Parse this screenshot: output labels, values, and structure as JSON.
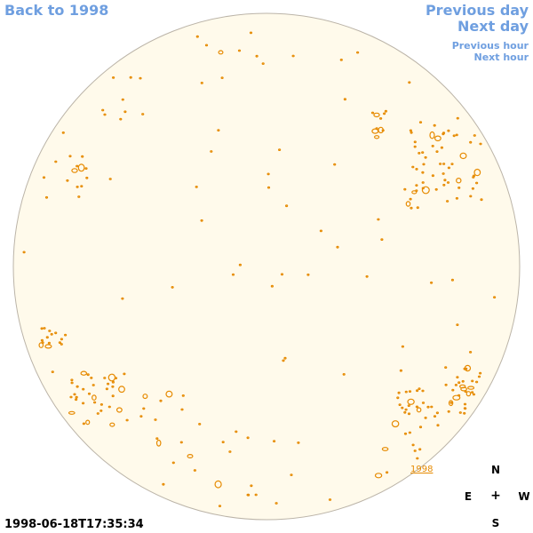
{
  "nav": {
    "back_label": "Back to 1998",
    "prev_day_label": "Previous day",
    "next_day_label": "Next day",
    "prev_hour_label": "Previous hour",
    "next_hour_label": "Next hour"
  },
  "map": {
    "year_label": "1998",
    "timestamp": "1998-06-18T17:35:34"
  },
  "compass": {
    "north": "N",
    "east": "E",
    "center": "+",
    "west": "W",
    "south": "S"
  },
  "colors": {
    "link": "#6f9fe0",
    "disk_fill": "#fffaeb",
    "disk_edge": "#bbb4a8",
    "feature": "#e68a00"
  }
}
